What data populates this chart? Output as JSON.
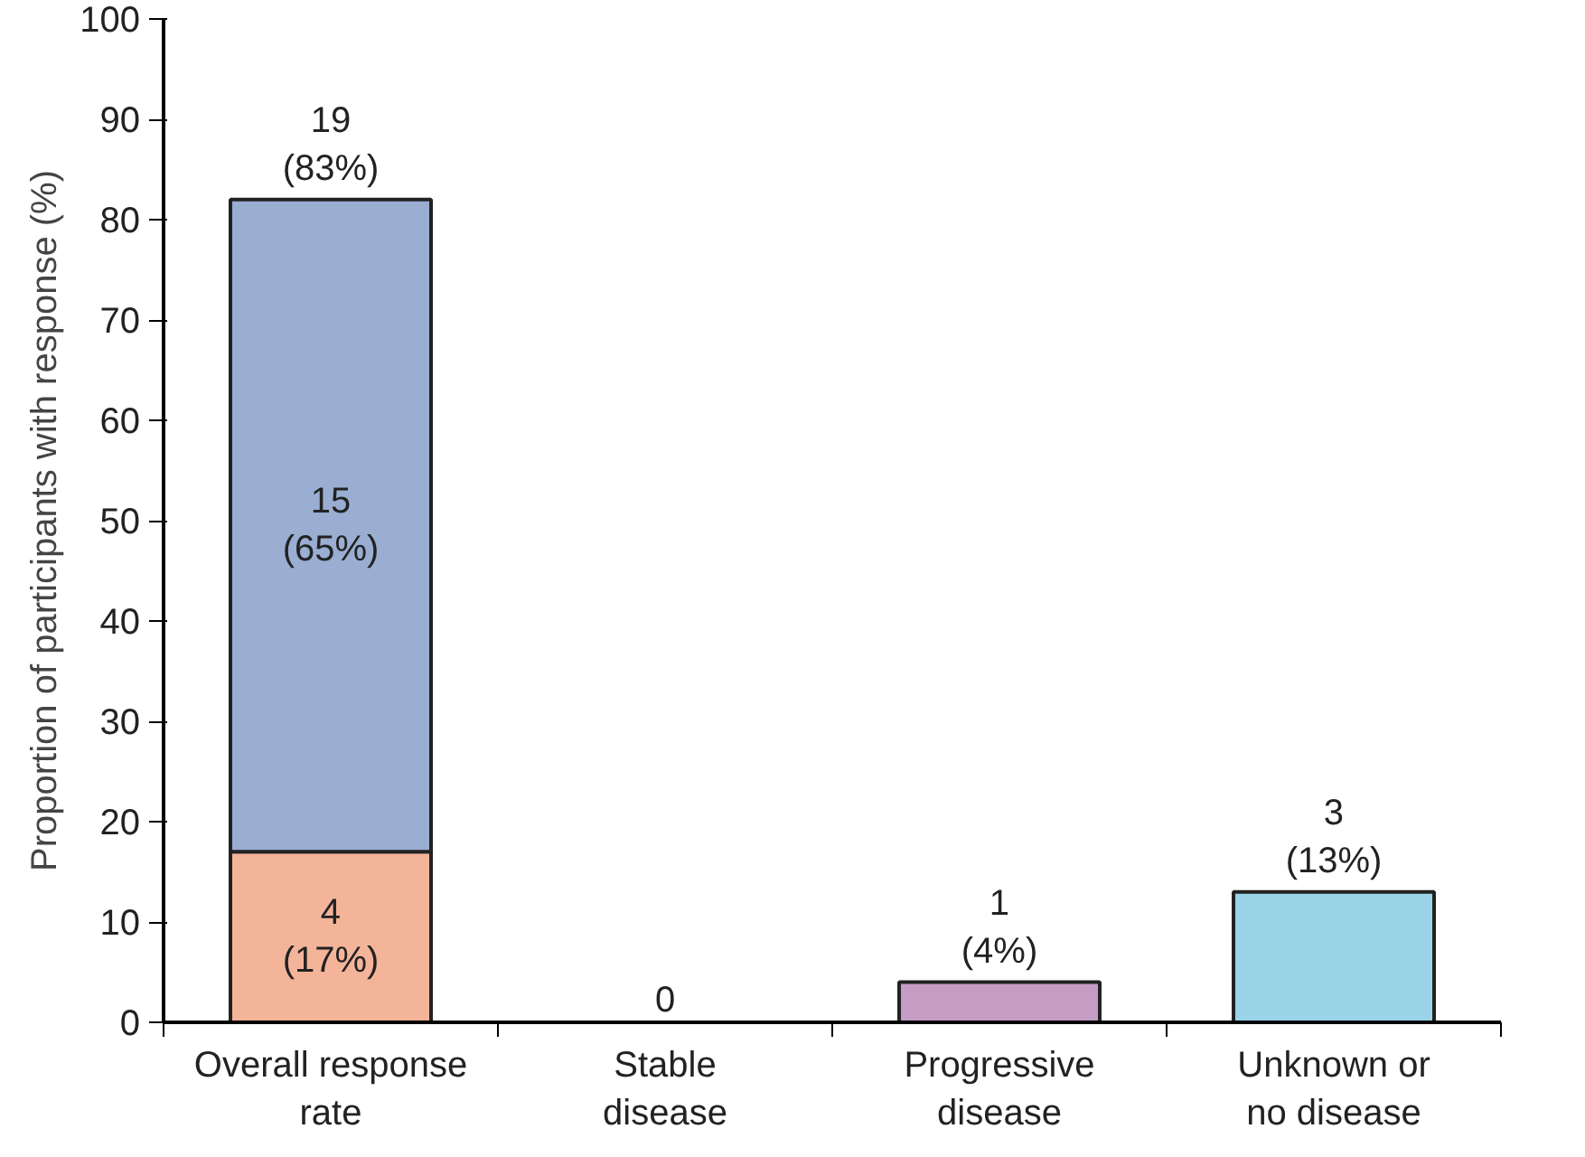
{
  "chart_data": {
    "type": "bar",
    "stacked": true,
    "ylabel": "Proportion of participants with response (%)",
    "categories": [
      "Overall response\nrate",
      "Stable\ndisease",
      "Progressive\ndisease",
      "Unknown or\nno disease"
    ],
    "series": [
      {
        "colors": [
          "#f4b49a",
          "#f4b49a",
          "#c49cc4",
          "#99d4e8"
        ],
        "values": [
          17,
          0,
          4,
          13
        ],
        "value_labels": [
          "4\n(17%)",
          "0",
          "1\n(4%)",
          "3\n(13%)"
        ]
      },
      {
        "color": "#9aaed2",
        "values": [
          65,
          null,
          null,
          null
        ],
        "value_labels": [
          "15\n(65%)",
          null,
          null,
          null
        ]
      }
    ],
    "totals": [
      "19\n(83%)",
      null,
      null,
      null
    ],
    "ylim": [
      0,
      100
    ],
    "yticks": [
      0,
      10,
      20,
      30,
      40,
      50,
      60,
      70,
      80,
      90,
      100
    ],
    "grid": false
  }
}
